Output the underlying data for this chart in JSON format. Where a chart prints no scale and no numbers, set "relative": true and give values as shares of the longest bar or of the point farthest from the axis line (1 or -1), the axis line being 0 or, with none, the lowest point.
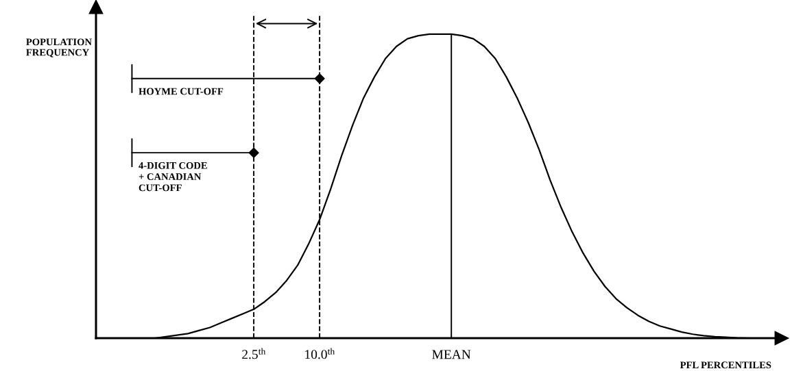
{
  "chart_data": {
    "type": "line",
    "relative": true,
    "xlabel": "PFL PERCENTILES",
    "categories": [
      null,
      null,
      null,
      null,
      null,
      null,
      null,
      null,
      null,
      "2.5$^{th}$",
      null,
      null,
      null,
      null,
      null,
      "10.0$^{th}$",
      null,
      null,
      null,
      null,
      null,
      null,
      null,
      null,
      null,
      null,
      null,
      "MEAN",
      null,
      null,
      null,
      null,
      null,
      null,
      null,
      null,
      null,
      null,
      null,
      null,
      null,
      null,
      null,
      null,
      null,
      null,
      null,
      null,
      null,
      null,
      null,
      null,
      null,
      null,
      null
    ],
    "series": [
      {
        "color": "#000000",
        "values": [
          0.0,
          0.005,
          0.01,
          0.015,
          0.025,
          0.035,
          0.05,
          0.065,
          0.08,
          0.095,
          0.12,
          0.15,
          0.19,
          0.24,
          0.31,
          0.39,
          0.49,
          0.6,
          0.7,
          0.79,
          0.86,
          0.92,
          0.96,
          0.985,
          0.995,
          1.0,
          1.0,
          1.0,
          0.995,
          0.985,
          0.96,
          0.92,
          0.86,
          0.79,
          0.71,
          0.62,
          0.52,
          0.43,
          0.35,
          0.28,
          0.22,
          0.17,
          0.13,
          0.1,
          0.075,
          0.055,
          0.04,
          0.03,
          0.02,
          0.013,
          0.008,
          0.005,
          0.003,
          0.001,
          0.0
        ]
      }
    ],
    "ref_lines": [
      {
        "axis": "x",
        "value": "2.5$^{th}$",
        "line_style": "dashed",
        "color": "#000000"
      },
      {
        "axis": "x",
        "value": "10.0$^{th}$",
        "line_style": "dashed",
        "color": "#000000"
      },
      {
        "axis": "x",
        "value": "MEAN",
        "line_style": "solid",
        "color": "#000000"
      }
    ],
    "annotations": [
      "POPULATION\nFREQUENCY",
      {
        "text": "HOYME CUT-OFF",
        "x": "10.0$^{th}$",
        "y": 0.854
      },
      {
        "text": "4-DIGIT CODE\n+ CANADIAN\nCUT-OFF",
        "x": "2.5$^{th}$",
        "y": 0.61
      }
    ],
    "marker": "none",
    "line_style": "solid",
    "grid": false,
    "legend": false
  }
}
